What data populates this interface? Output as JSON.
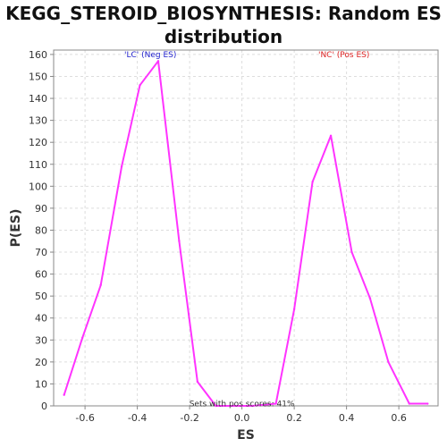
{
  "chart_data": {
    "type": "line",
    "title_line1": "KEGG_STEROID_BIOSYNTHESIS: Random ES",
    "title_line2": "distribution",
    "xlabel": "ES",
    "ylabel": "P(ES)",
    "xlim": [
      -0.72,
      0.75
    ],
    "ylim": [
      0,
      162
    ],
    "xticks": [
      -0.6,
      -0.4,
      -0.2,
      0.0,
      0.2,
      0.4,
      0.6
    ],
    "xtick_labels": [
      "-0.6",
      "-0.4",
      "-0.2",
      "0.0",
      "0.2",
      "0.4",
      "0.6"
    ],
    "yticks": [
      0,
      10,
      20,
      30,
      40,
      50,
      60,
      70,
      80,
      90,
      100,
      110,
      120,
      130,
      140,
      150,
      160
    ],
    "ytick_labels": [
      "0",
      "10",
      "20",
      "30",
      "40",
      "50",
      "60",
      "70",
      "80",
      "90",
      "100",
      "110",
      "120",
      "130",
      "140",
      "150",
      "160"
    ],
    "grid": true,
    "series": [
      {
        "color": "#ff33ff",
        "x": [
          -0.68,
          -0.61,
          -0.54,
          -0.46,
          -0.39,
          -0.32,
          -0.24,
          -0.17,
          -0.1,
          -0.03,
          0.04,
          0.13,
          0.2,
          0.27,
          0.34,
          0.42,
          0.49,
          0.56,
          0.64,
          0.71
        ],
        "y": [
          5,
          31,
          55,
          109,
          146,
          157,
          75,
          11,
          0,
          0,
          0,
          1,
          44,
          102,
          123,
          70,
          49,
          20,
          1,
          1
        ]
      }
    ],
    "annotations": [
      {
        "text": "'LC' (Neg ES)",
        "x": -0.35,
        "y": 160,
        "color": "#2020cc"
      },
      {
        "text": "'NC' (Pos ES)",
        "x": 0.39,
        "y": 160,
        "color": "#dd2222"
      },
      {
        "text": "Sets with pos scores: 41%",
        "x": 0.0,
        "y": 1,
        "color": "#333333"
      }
    ]
  }
}
